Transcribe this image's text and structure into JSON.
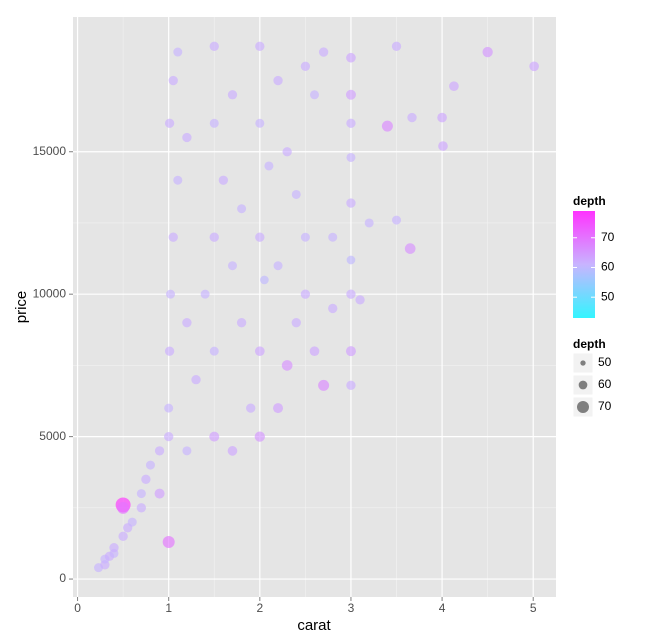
{
  "chart_data": {
    "type": "scatter",
    "x_label": "carat",
    "y_label": "price",
    "xlim": [
      -0.05,
      5.25
    ],
    "ylim": [
      -630,
      19730
    ],
    "xticks": [
      0,
      1,
      2,
      3,
      4,
      5
    ],
    "yticks": [
      0,
      5000,
      10000,
      15000
    ],
    "grid": true,
    "color_legend": {
      "title": "depth",
      "limits": [
        43,
        79
      ],
      "ticks": [
        50,
        60,
        70
      ],
      "colors": [
        "#33f5ff",
        "#c8b4ff",
        "#ff33ff"
      ]
    },
    "size_legend": {
      "title": "depth",
      "ticks": [
        50,
        60,
        70
      ]
    },
    "legend": "right",
    "x": [
      0.23,
      0.3,
      0.3,
      0.35,
      0.4,
      0.4,
      0.5,
      0.5,
      0.5,
      0.55,
      0.6,
      0.7,
      0.7,
      0.75,
      0.8,
      0.9,
      0.9,
      1.0,
      1.0,
      1.0,
      1.01,
      1.02,
      1.05,
      1.1,
      1.01,
      1.05,
      1.1,
      1.2,
      1.2,
      1.2,
      1.3,
      1.4,
      1.5,
      1.5,
      1.5,
      1.5,
      1.5,
      1.6,
      1.7,
      1.7,
      1.7,
      1.8,
      1.8,
      1.9,
      2.0,
      2.0,
      2.0,
      2.0,
      2.0,
      2.05,
      2.1,
      2.2,
      2.2,
      2.2,
      2.3,
      2.3,
      2.4,
      2.4,
      2.5,
      2.5,
      2.5,
      2.6,
      2.6,
      2.7,
      2.7,
      2.8,
      2.8,
      3.0,
      3.0,
      3.0,
      3.0,
      3.0,
      3.0,
      3.0,
      3.0,
      3.0,
      3.1,
      3.2,
      3.4,
      3.5,
      3.5,
      3.65,
      3.67,
      4.0,
      4.01,
      4.13,
      4.5,
      5.01
    ],
    "y": [
      400,
      500,
      700,
      800,
      900,
      1100,
      1500,
      2600,
      2500,
      1800,
      2000,
      2500,
      3000,
      3500,
      4000,
      4500,
      3000,
      5000,
      6000,
      1300,
      8000,
      10000,
      12000,
      14000,
      16000,
      17500,
      18500,
      15500,
      9000,
      4500,
      7000,
      10000,
      18700,
      16000,
      12000,
      8000,
      5000,
      14000,
      17000,
      11000,
      4500,
      9000,
      13000,
      6000,
      18700,
      16000,
      12000,
      8000,
      5000,
      10500,
      14500,
      17500,
      11000,
      6000,
      15000,
      7500,
      13500,
      9000,
      18000,
      12000,
      10000,
      17000,
      8000,
      18500,
      6800,
      12000,
      9500,
      18300,
      17000,
      16000,
      14800,
      13200,
      11200,
      10000,
      8000,
      6800,
      9800,
      12500,
      15900,
      18700,
      12600,
      11600,
      16200,
      16200,
      15200,
      17300,
      18500,
      18000
    ],
    "depth": [
      61,
      62,
      61,
      62,
      61,
      62,
      62,
      79,
      70,
      62,
      61,
      62,
      61,
      62,
      61,
      62,
      64,
      62,
      61,
      70,
      62,
      61,
      62,
      61,
      62,
      62,
      61,
      62,
      62,
      61,
      62,
      61,
      62,
      61,
      62,
      61,
      64,
      62,
      62,
      61,
      63,
      62,
      61,
      62,
      62,
      61,
      62,
      63,
      65,
      60,
      61,
      62,
      61,
      64,
      62,
      66,
      61,
      62,
      62,
      61,
      62,
      61,
      63,
      62,
      67,
      61,
      62,
      63,
      64,
      62,
      61,
      62,
      60,
      62,
      64,
      62,
      62,
      61,
      67,
      62,
      61,
      66,
      62,
      63,
      63,
      63,
      65,
      63
    ]
  }
}
